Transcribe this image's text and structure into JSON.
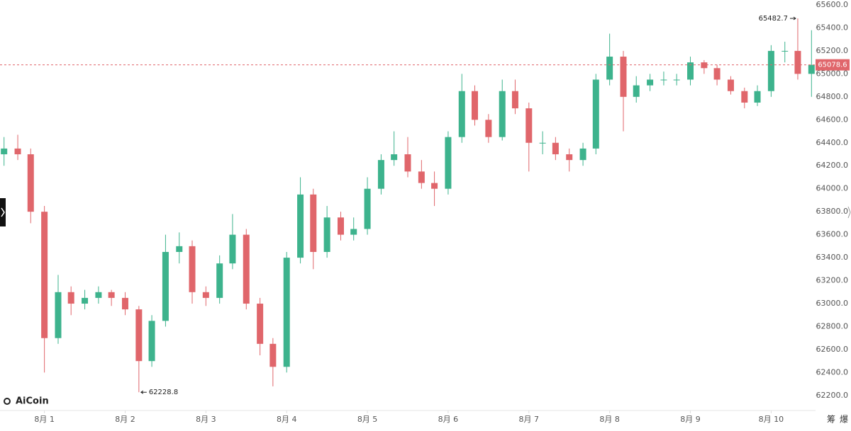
{
  "chart_data": {
    "type": "candlestick",
    "brand": "AiCoin",
    "toolbar": [
      "筹",
      "爆"
    ],
    "x": [
      0.5,
      0.67,
      0.83,
      1,
      1.17,
      1.33,
      1.5,
      1.67,
      1.83,
      2,
      2.17,
      2.33,
      2.5,
      2.67,
      2.83,
      3,
      3.17,
      3.33,
      3.5,
      3.67,
      3.83,
      4,
      4.17,
      4.33,
      4.5,
      4.67,
      4.83,
      5,
      5.17,
      5.33,
      5.5,
      5.67,
      5.83,
      6,
      6.17,
      6.33,
      6.5,
      6.67,
      6.83,
      7,
      7.17,
      7.33,
      7.5,
      7.67,
      7.83,
      8,
      8.17,
      8.33,
      8.5,
      8.67,
      8.83,
      9,
      9.17,
      9.33,
      9.5,
      9.67,
      9.83,
      10,
      10.17,
      10.33,
      10.5
    ],
    "open": [
      64300,
      64350,
      64300,
      63800,
      62700,
      63100,
      63000,
      63050,
      63100,
      63050,
      62950,
      62500,
      62850,
      63450,
      63500,
      63100,
      63050,
      63350,
      63600,
      63000,
      62650,
      62450,
      63400,
      63950,
      63450,
      63750,
      63600,
      63650,
      64000,
      64250,
      64300,
      64150,
      64050,
      64000,
      64450,
      64850,
      64600,
      64450,
      64850,
      64700,
      64400,
      64400,
      64300,
      64250,
      64350,
      64950,
      65150,
      64800,
      64900,
      64950,
      64950,
      64950,
      65100,
      65050,
      64950,
      64850,
      64750,
      64850,
      65200,
      65200,
      65000
    ],
    "high": [
      64450,
      64470,
      64350,
      63850,
      63250,
      63150,
      63120,
      63150,
      63120,
      63100,
      62980,
      62900,
      63600,
      63620,
      63550,
      63150,
      63420,
      63780,
      63650,
      63050,
      62700,
      63450,
      64100,
      64000,
      63850,
      63800,
      63750,
      64100,
      64300,
      64500,
      64450,
      64250,
      64150,
      64500,
      65000,
      64900,
      64650,
      64950,
      64950,
      64750,
      64500,
      64450,
      64350,
      64400,
      65000,
      65350,
      65200,
      64980,
      65000,
      65020,
      65000,
      65150,
      65120,
      65080,
      64980,
      64880,
      64900,
      65250,
      65280,
      65482.7,
      65380
    ],
    "low": [
      64200,
      64250,
      63700,
      62400,
      62650,
      62900,
      62950,
      63000,
      62980,
      62900,
      62228.8,
      62450,
      62800,
      63350,
      63000,
      62980,
      63000,
      63300,
      62950,
      62550,
      62280,
      62400,
      63350,
      63300,
      63400,
      63550,
      63550,
      63600,
      63950,
      64200,
      64100,
      64000,
      63850,
      63950,
      64400,
      64550,
      64400,
      64420,
      64650,
      64150,
      64300,
      64250,
      64150,
      64200,
      64300,
      64900,
      64500,
      64750,
      64850,
      64900,
      64900,
      64900,
      65000,
      64900,
      64820,
      64700,
      64720,
      64800,
      65100,
      64950,
      64800
    ],
    "close": [
      64350,
      64300,
      63800,
      62700,
      63100,
      63000,
      63050,
      63100,
      63050,
      62950,
      62500,
      62850,
      63450,
      63500,
      63100,
      63050,
      63350,
      63600,
      63000,
      62650,
      62450,
      63400,
      63950,
      63450,
      63750,
      63600,
      63650,
      64000,
      64250,
      64300,
      64150,
      64050,
      64000,
      64450,
      64850,
      64600,
      64450,
      64850,
      64700,
      64400,
      64400,
      64300,
      64250,
      64350,
      64950,
      65150,
      64800,
      64900,
      64950,
      64950,
      64950,
      65100,
      65050,
      64950,
      64850,
      64750,
      64850,
      65200,
      65200,
      65000,
      65078.6
    ],
    "up_color": "#3db38d",
    "down_color": "#e0666b",
    "last_price": 65078.6,
    "last_price_label": "65078.6",
    "max_label": "65482.7",
    "min_label": "62228.8",
    "xlim": [
      0.45,
      10.55
    ],
    "xticks": [
      {
        "value": 1,
        "label": "8月 1"
      },
      {
        "value": 2,
        "label": "8月 2"
      },
      {
        "value": 3,
        "label": "8月 3"
      },
      {
        "value": 4,
        "label": "8月 4"
      },
      {
        "value": 5,
        "label": "8月 5"
      },
      {
        "value": 6,
        "label": "8月 6"
      },
      {
        "value": 7,
        "label": "8月 7"
      },
      {
        "value": 8,
        "label": "8月 8"
      },
      {
        "value": 9,
        "label": "8月 9"
      },
      {
        "value": 10,
        "label": "8月 10"
      }
    ],
    "ylim": [
      62070,
      65643
    ],
    "yticks": [
      {
        "value": 62200,
        "label": "62200.0"
      },
      {
        "value": 62400,
        "label": "62400.0"
      },
      {
        "value": 62600,
        "label": "62600.0"
      },
      {
        "value": 62800,
        "label": "62800.0"
      },
      {
        "value": 63000,
        "label": "63000.0"
      },
      {
        "value": 63200,
        "label": "63200.0"
      },
      {
        "value": 63400,
        "label": "63400.0"
      },
      {
        "value": 63600,
        "label": "63600.0"
      },
      {
        "value": 63800,
        "label": "63800.0"
      },
      {
        "value": 64000,
        "label": "64000.0"
      },
      {
        "value": 64200,
        "label": "64200.0"
      },
      {
        "value": 64400,
        "label": "64400.0"
      },
      {
        "value": 64600,
        "label": "64600.0"
      },
      {
        "value": 64800,
        "label": "64800.0"
      },
      {
        "value": 65000,
        "label": "65000.0"
      },
      {
        "value": 65200,
        "label": "65200.0"
      },
      {
        "value": 65400,
        "label": "65400.0"
      },
      {
        "value": 65600,
        "label": "65600.0"
      }
    ]
  }
}
